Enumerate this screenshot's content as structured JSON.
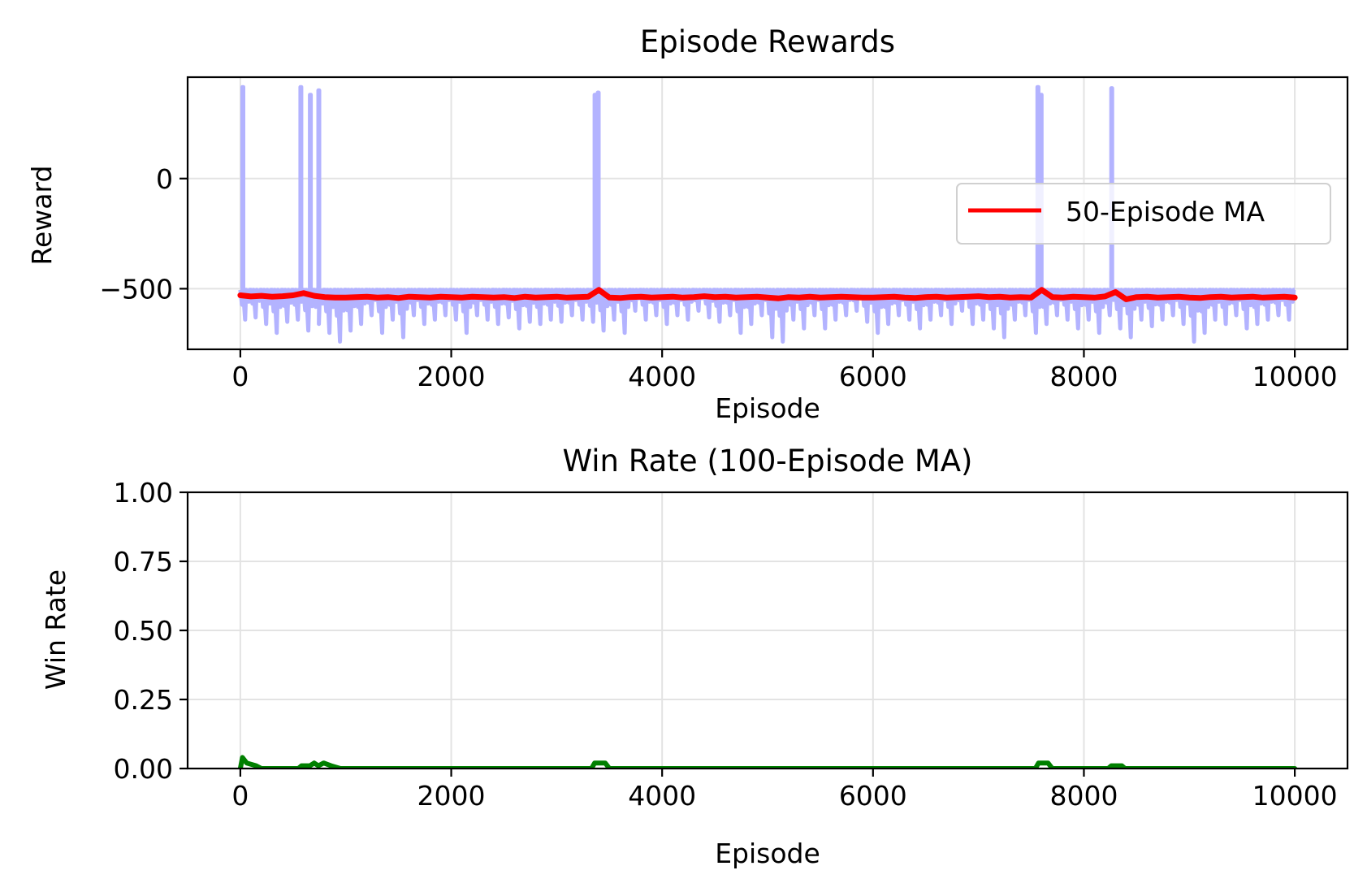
{
  "chart_data": [
    {
      "type": "line",
      "title": "Episode Rewards",
      "xlabel": "Episode",
      "ylabel": "Reward",
      "xlim": [
        -500,
        10500
      ],
      "ylim": [
        -775,
        460
      ],
      "xticks": [
        0,
        2000,
        4000,
        6000,
        8000,
        10000
      ],
      "xtick_labels": [
        "0",
        "2000",
        "4000",
        "6000",
        "8000",
        "10000"
      ],
      "yticks": [
        0,
        -500
      ],
      "ytick_labels": [
        "0",
        "−500"
      ],
      "grid": true,
      "legend": {
        "position": "right",
        "entries": [
          "50-Episode MA"
        ]
      },
      "colors": {
        "raw": "#b3b3ff",
        "ma": "#ff0000"
      },
      "raw_rewards": {
        "typical_upper": -505,
        "lower_envelope_bin_size": 100,
        "lower_envelope": [
          -640,
          -630,
          -660,
          -700,
          -650,
          -640,
          -690,
          -660,
          -700,
          -740,
          -690,
          -660,
          -620,
          -700,
          -640,
          -720,
          -620,
          -660,
          -640,
          -620,
          -640,
          -700,
          -620,
          -640,
          -660,
          -630,
          -680,
          -650,
          -660,
          -640,
          -650,
          -620,
          -640,
          -650,
          -690,
          -640,
          -700,
          -600,
          -640,
          -620,
          -660,
          -620,
          -640,
          -600,
          -630,
          -650,
          -620,
          -700,
          -660,
          -620,
          -720,
          -740,
          -640,
          -680,
          -620,
          -680,
          -640,
          -620,
          -600,
          -650,
          -700,
          -660,
          -620,
          -640,
          -680,
          -640,
          -620,
          -660,
          -600,
          -660,
          -640,
          -680,
          -720,
          -640,
          -620,
          -700,
          -660,
          -620,
          -640,
          -680,
          -640,
          -700,
          -620,
          -680,
          -720,
          -640,
          -670,
          -640,
          -620,
          -660,
          -740,
          -700,
          -640,
          -660,
          -620,
          -680,
          -660,
          -640,
          -620,
          -640
        ],
        "win_spikes": [
          [
            20,
            415
          ],
          [
            570,
            415
          ],
          [
            660,
            380
          ],
          [
            740,
            400
          ],
          [
            3360,
            380
          ],
          [
            3390,
            390
          ],
          [
            7560,
            415
          ],
          [
            7590,
            380
          ],
          [
            8260,
            410
          ]
        ]
      },
      "series": [
        {
          "name": "50-Episode MA",
          "x_step": 100,
          "values": [
            -530,
            -535,
            -532,
            -536,
            -534,
            -530,
            -520,
            -532,
            -538,
            -540,
            -540,
            -538,
            -536,
            -540,
            -538,
            -542,
            -536,
            -538,
            -540,
            -536,
            -538,
            -540,
            -536,
            -538,
            -540,
            -538,
            -542,
            -536,
            -540,
            -538,
            -536,
            -540,
            -538,
            -536,
            -505,
            -540,
            -542,
            -538,
            -536,
            -540,
            -538,
            -536,
            -540,
            -538,
            -534,
            -538,
            -536,
            -540,
            -538,
            -536,
            -540,
            -544,
            -538,
            -540,
            -536,
            -540,
            -538,
            -536,
            -538,
            -540,
            -540,
            -538,
            -536,
            -540,
            -542,
            -538,
            -536,
            -540,
            -538,
            -536,
            -534,
            -538,
            -536,
            -540,
            -538,
            -540,
            -505,
            -538,
            -540,
            -536,
            -538,
            -540,
            -535,
            -515,
            -548,
            -538,
            -536,
            -540,
            -538,
            -536,
            -540,
            -542,
            -538,
            -536,
            -540,
            -538,
            -536,
            -540,
            -538,
            -536,
            -540
          ]
        }
      ]
    },
    {
      "type": "line",
      "title": "Win Rate (100-Episode MA)",
      "xlabel": "Episode",
      "ylabel": "Win Rate",
      "xlim": [
        -500,
        10500
      ],
      "ylim": [
        0,
        1
      ],
      "xticks": [
        0,
        2000,
        4000,
        6000,
        8000,
        10000
      ],
      "xtick_labels": [
        "0",
        "2000",
        "4000",
        "6000",
        "8000",
        "10000"
      ],
      "yticks": [
        0,
        0.25,
        0.5,
        0.75,
        1
      ],
      "ytick_labels": [
        "0.00",
        "0.25",
        "0.50",
        "0.75",
        "1.00"
      ],
      "grid": true,
      "colors": {
        "line": "#008000"
      },
      "series": [
        {
          "points": [
            [
              0,
              0
            ],
            [
              20,
              0.04
            ],
            [
              60,
              0.02
            ],
            [
              150,
              0.01
            ],
            [
              200,
              0
            ],
            [
              550,
              0
            ],
            [
              580,
              0.01
            ],
            [
              660,
              0.01
            ],
            [
              700,
              0.02
            ],
            [
              740,
              0.01
            ],
            [
              790,
              0.02
            ],
            [
              860,
              0.01
            ],
            [
              950,
              0
            ],
            [
              3330,
              0
            ],
            [
              3360,
              0.02
            ],
            [
              3460,
              0.02
            ],
            [
              3500,
              0
            ],
            [
              7540,
              0
            ],
            [
              7570,
              0.02
            ],
            [
              7660,
              0.02
            ],
            [
              7700,
              0
            ],
            [
              8230,
              0
            ],
            [
              8260,
              0.01
            ],
            [
              8360,
              0.01
            ],
            [
              8390,
              0
            ],
            [
              10000,
              0
            ]
          ]
        }
      ]
    }
  ]
}
